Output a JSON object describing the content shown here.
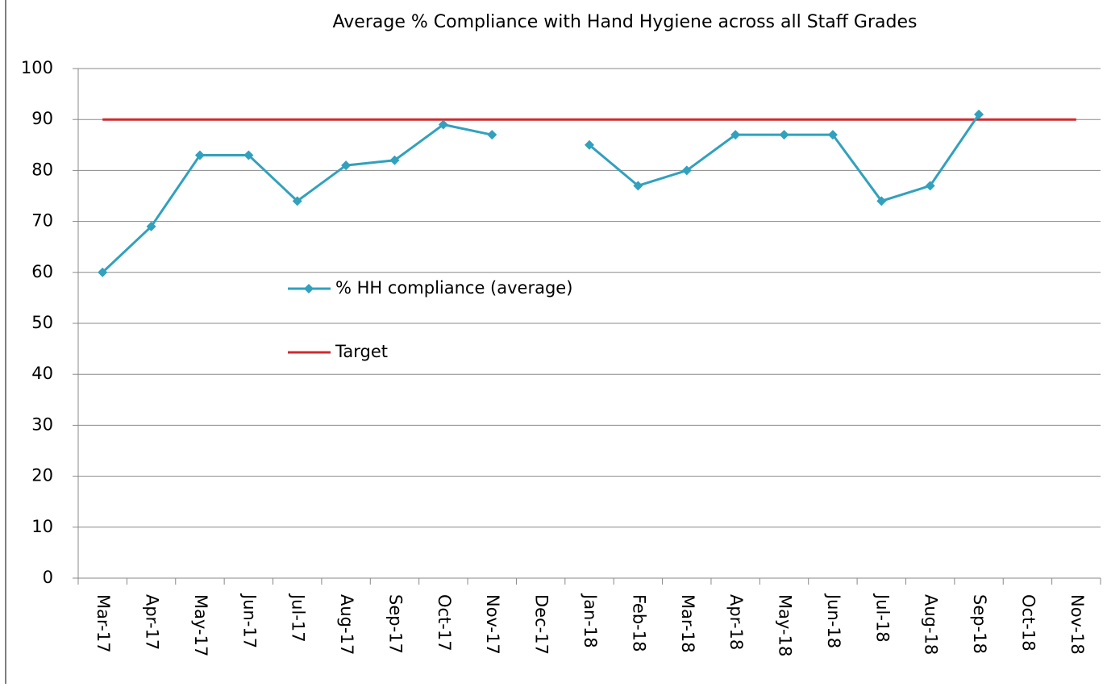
{
  "chart_data": {
    "type": "line",
    "title": "Average % Compliance with Hand Hygiene across all Staff Grades",
    "categories": [
      "Mar-17",
      "Apr-17",
      "May-17",
      "Jun-17",
      "Jul-17",
      "Aug-17",
      "Sep-17",
      "Oct-17",
      "Nov-17",
      "Dec-17",
      "Jan-18",
      "Feb-18",
      "Mar-18",
      "Apr-18",
      "May-18",
      "Jun-18",
      "Jul-18",
      "Aug-18",
      "Sep-18",
      "Oct-18",
      "Nov-18"
    ],
    "series": [
      {
        "name": "% HH compliance (average)",
        "color": "#31a1bd",
        "marker": "diamond",
        "values": [
          60,
          69,
          83,
          83,
          74,
          81,
          82,
          89,
          87,
          null,
          85,
          77,
          80,
          87,
          87,
          87,
          74,
          77,
          91,
          null,
          null
        ]
      },
      {
        "name": "Target",
        "color": "#d12a2f",
        "values": [
          90,
          90,
          90,
          90,
          90,
          90,
          90,
          90,
          90,
          90,
          90,
          90,
          90,
          90,
          90,
          90,
          90,
          90,
          90,
          90,
          90
        ]
      }
    ],
    "ylim": [
      0,
      100
    ],
    "yticks": [
      0,
      10,
      20,
      30,
      40,
      50,
      60,
      70,
      80,
      90,
      100
    ],
    "grid": true
  }
}
